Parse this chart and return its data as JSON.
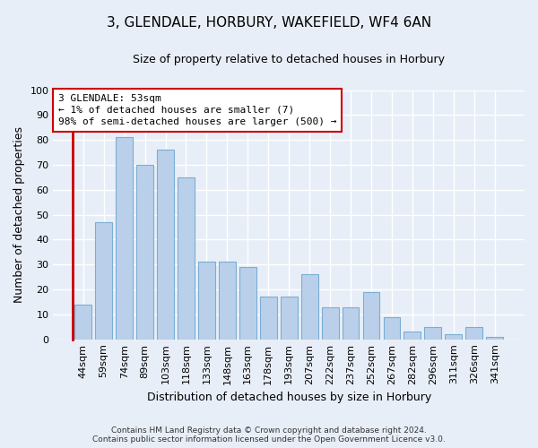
{
  "title": "3, GLENDALE, HORBURY, WAKEFIELD, WF4 6AN",
  "subtitle": "Size of property relative to detached houses in Horbury",
  "xlabel": "Distribution of detached houses by size in Horbury",
  "ylabel": "Number of detached properties",
  "categories": [
    "44sqm",
    "59sqm",
    "74sqm",
    "89sqm",
    "103sqm",
    "118sqm",
    "133sqm",
    "148sqm",
    "163sqm",
    "178sqm",
    "193sqm",
    "207sqm",
    "222sqm",
    "237sqm",
    "252sqm",
    "267sqm",
    "282sqm",
    "296sqm",
    "311sqm",
    "326sqm",
    "341sqm"
  ],
  "values": [
    14,
    47,
    81,
    70,
    76,
    65,
    31,
    31,
    29,
    17,
    17,
    26,
    13,
    13,
    19,
    9,
    3,
    5,
    2,
    5,
    1
  ],
  "bar_color": "#bad0ea",
  "bar_edge_color": "#7aadd4",
  "highlight_color": "#cc0000",
  "ylim_max": 100,
  "yticks": [
    0,
    10,
    20,
    30,
    40,
    50,
    60,
    70,
    80,
    90,
    100
  ],
  "annotation_line1": "3 GLENDALE: 53sqm",
  "annotation_line2": "← 1% of detached houses are smaller (7)",
  "annotation_line3": "98% of semi-detached houses are larger (500) →",
  "footer_line1": "Contains HM Land Registry data © Crown copyright and database right 2024.",
  "footer_line2": "Contains public sector information licensed under the Open Government Licence v3.0.",
  "bg_color": "#e8eef7",
  "grid_color": "#ffffff",
  "title_fontsize": 11,
  "subtitle_fontsize": 9,
  "ylabel_fontsize": 9,
  "xlabel_fontsize": 9,
  "tick_fontsize": 8,
  "annotation_fontsize": 8,
  "footer_fontsize": 6.5
}
